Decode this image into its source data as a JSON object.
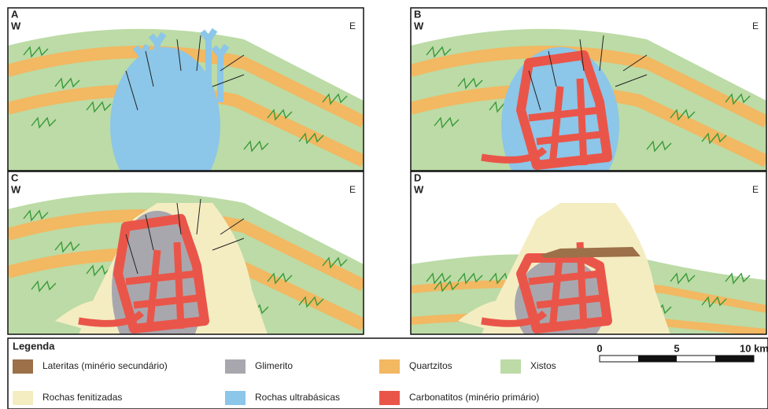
{
  "panels": [
    {
      "letter": "A",
      "west": "W",
      "east": "E"
    },
    {
      "letter": "B",
      "west": "W",
      "east": "E"
    },
    {
      "letter": "C",
      "west": "W",
      "east": "E"
    },
    {
      "letter": "D",
      "west": "W",
      "east": "E"
    }
  ],
  "legend": {
    "title": "Legenda",
    "items": [
      {
        "label": "Lateritas (minério secundário)",
        "color": "#9c7048"
      },
      {
        "label": "Glimerito",
        "color": "#a9a7ae"
      },
      {
        "label": "Quartzitos",
        "color": "#f2b862"
      },
      {
        "label": "Xistos",
        "color": "#bcdba6"
      },
      {
        "label": "Rochas fenitizadas",
        "color": "#f5edc2"
      },
      {
        "label": "Rochas ultrabásicas",
        "color": "#8cc6e8"
      },
      {
        "label": "Carbonatitos (minério primário)",
        "color": "#ea5549"
      }
    ]
  },
  "scale": {
    "labels": [
      "0",
      "5",
      "10 km"
    ]
  }
}
